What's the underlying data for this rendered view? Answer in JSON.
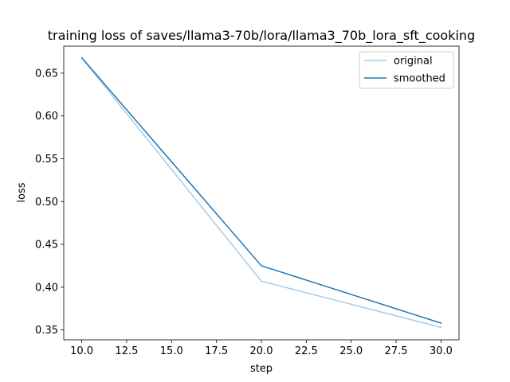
{
  "chart_data": {
    "type": "line",
    "title": "training loss of saves/llama3-70b/lora/llama3_70b_lora_sft_cooking",
    "xlabel": "step",
    "ylabel": "loss",
    "xlim": [
      9.0,
      31.0
    ],
    "ylim": [
      0.3385,
      0.6815
    ],
    "xticks": [
      "10.0",
      "12.5",
      "15.0",
      "17.5",
      "20.0",
      "22.5",
      "25.0",
      "27.5",
      "30.0"
    ],
    "yticks": [
      "0.35",
      "0.40",
      "0.45",
      "0.50",
      "0.55",
      "0.60",
      "0.65"
    ],
    "grid": false,
    "legend_position": "top-right",
    "series": [
      {
        "name": "original",
        "color": "#a6cbe3",
        "x": [
          10,
          20,
          30
        ],
        "y": [
          0.668,
          0.407,
          0.353
        ]
      },
      {
        "name": "smoothed",
        "color": "#1f77b4",
        "x": [
          10,
          20,
          30
        ],
        "y": [
          0.668,
          0.425,
          0.358
        ]
      }
    ]
  }
}
